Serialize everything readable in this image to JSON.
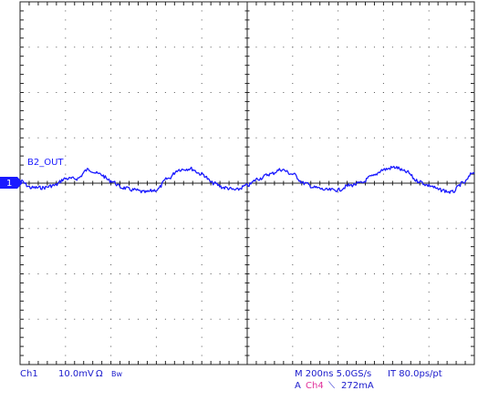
{
  "chart_data": {
    "type": "line",
    "title": "",
    "xlabel": "",
    "ylabel": "",
    "grid": true,
    "divisions": {
      "x": 10,
      "y": 8
    },
    "xlim": [
      0,
      10
    ],
    "ylim": [
      -4,
      4
    ],
    "series": [
      {
        "name": "B2_OUT",
        "color": "#1a1aff",
        "x": [
          0,
          0.25,
          0.5,
          0.75,
          1.0,
          1.25,
          1.5,
          1.75,
          2.0,
          2.25,
          2.5,
          2.75,
          3.0,
          3.25,
          3.5,
          3.75,
          4.0,
          4.25,
          4.5,
          4.75,
          5.0,
          5.25,
          5.5,
          5.75,
          6.0,
          6.25,
          6.5,
          6.75,
          7.0,
          7.25,
          7.5,
          7.75,
          8.0,
          8.25,
          8.5,
          8.75,
          9.0,
          9.25,
          9.5,
          9.75,
          10.0
        ],
        "y": [
          0.05,
          -0.1,
          -0.1,
          -0.05,
          0.1,
          0.1,
          0.3,
          0.2,
          0.05,
          -0.1,
          -0.15,
          -0.2,
          -0.15,
          0.1,
          0.3,
          0.32,
          0.2,
          0.0,
          -0.1,
          -0.15,
          -0.05,
          0.1,
          0.2,
          0.3,
          0.2,
          0.0,
          -0.1,
          -0.15,
          -0.15,
          -0.05,
          0.0,
          0.15,
          0.3,
          0.35,
          0.25,
          0.05,
          -0.05,
          -0.15,
          -0.2,
          0.0,
          0.25
        ]
      }
    ]
  },
  "channel_marker": "1",
  "trace_label": "B2_OUT",
  "status": {
    "channel": "Ch1",
    "scale": "10.0mV",
    "coupling_icon": "Ω",
    "bw": "Bw",
    "timebase": "M 200ns 5.0GS/s",
    "sample": "IT 80.0ps/pt",
    "trigger_prefix": "A",
    "trigger_source": "Ch4",
    "trigger_slope_icon": "⟍",
    "trigger_level": "272mA"
  }
}
